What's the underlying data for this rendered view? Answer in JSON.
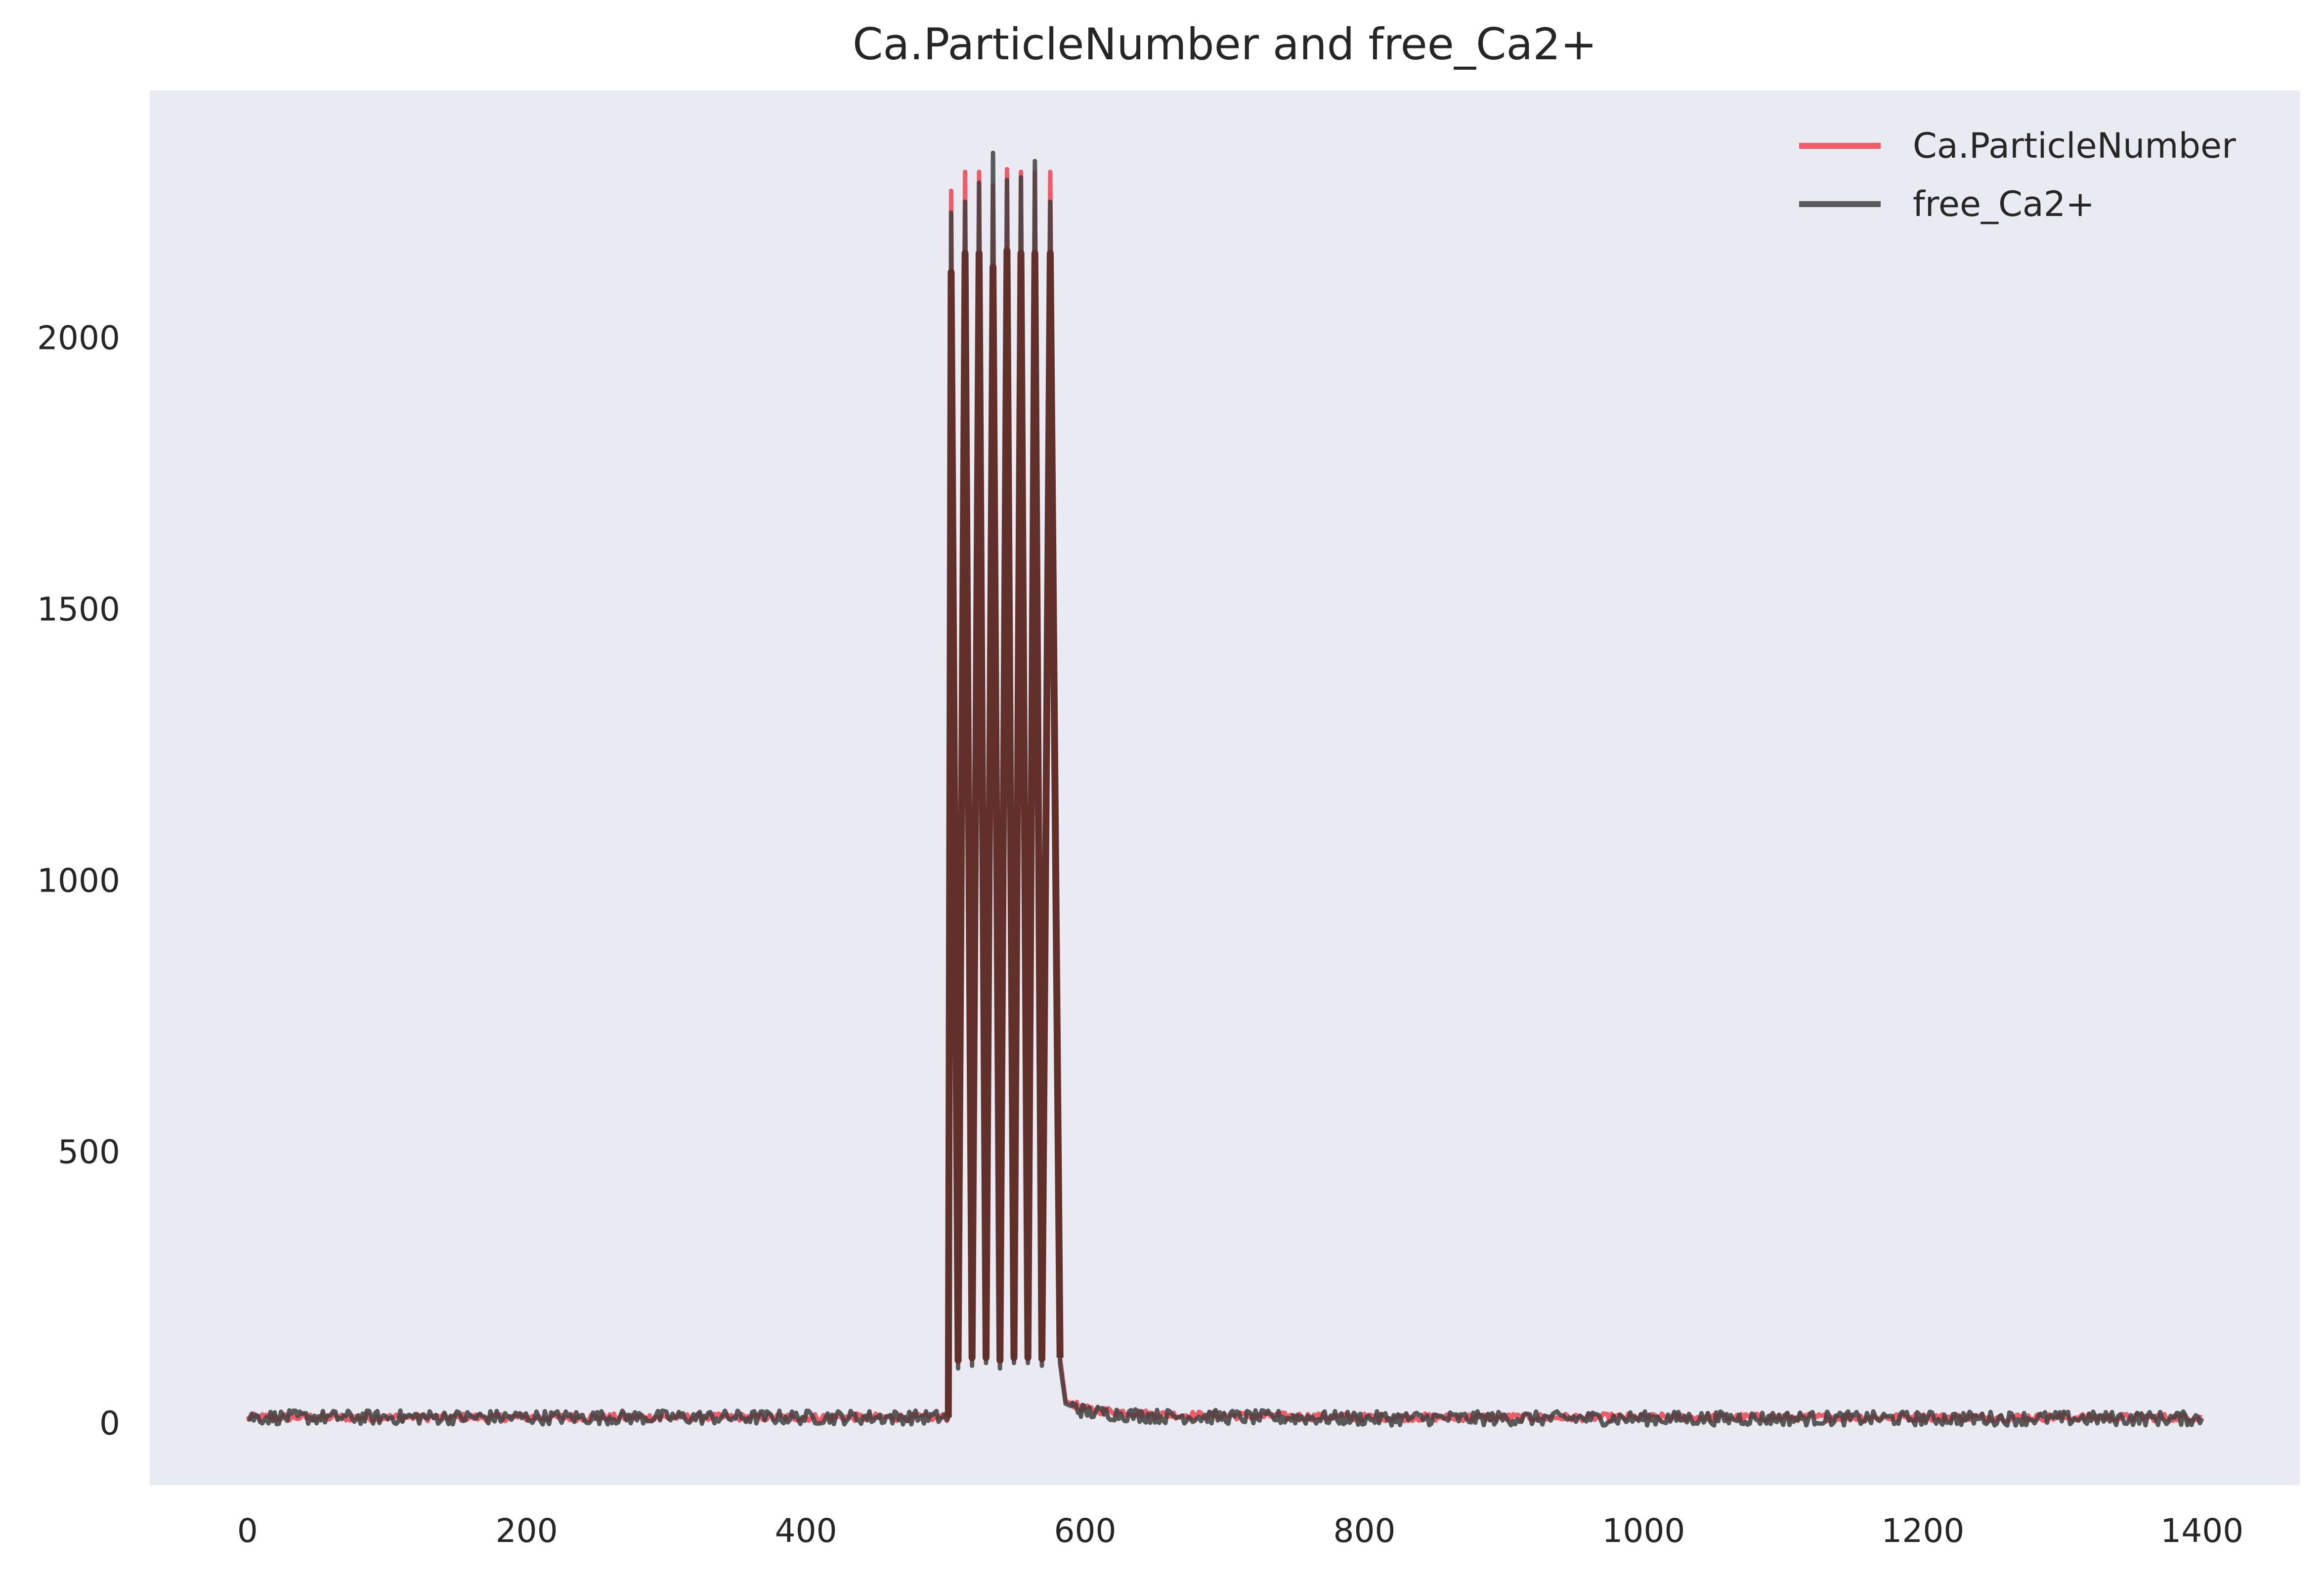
{
  "chart_data": {
    "type": "line",
    "title": "Ca.ParticleNumber and free_Ca2+",
    "xlabel": "",
    "ylabel": "",
    "xlim": [
      -70,
      1470
    ],
    "ylim": [
      -115,
      2455
    ],
    "xticks": [
      0,
      200,
      400,
      600,
      800,
      1000,
      1200,
      1400
    ],
    "yticks": [
      0,
      500,
      1000,
      1500,
      2000
    ],
    "grid": false,
    "legend_position": "top-right",
    "background": "#eaeaf2",
    "series": [
      {
        "name": "Ca.ParticleNumber",
        "color": "#f0434f",
        "baseline_pre": 10,
        "burst_start": 502,
        "burst_end": 582,
        "peaks": [
          {
            "x": 504,
            "y": 2270
          },
          {
            "x": 514,
            "y": 2305
          },
          {
            "x": 524,
            "y": 2305
          },
          {
            "x": 534,
            "y": 2280
          },
          {
            "x": 544,
            "y": 2310
          },
          {
            "x": 554,
            "y": 2305
          },
          {
            "x": 564,
            "y": 2305
          },
          {
            "x": 575,
            "y": 2305
          }
        ],
        "troughs": [
          {
            "x": 509,
            "y": 115
          },
          {
            "x": 519,
            "y": 120
          },
          {
            "x": 529,
            "y": 120
          },
          {
            "x": 539,
            "y": 115
          },
          {
            "x": 549,
            "y": 120
          },
          {
            "x": 559,
            "y": 120
          },
          {
            "x": 569,
            "y": 118
          }
        ],
        "decay": [
          {
            "x": 582,
            "y": 120
          },
          {
            "x": 586,
            "y": 40
          },
          {
            "x": 600,
            "y": 25
          },
          {
            "x": 650,
            "y": 15
          },
          {
            "x": 800,
            "y": 10
          },
          {
            "x": 1400,
            "y": 10
          }
        ]
      },
      {
        "name": "free_Ca2+",
        "color": "#404040",
        "baseline_pre": 10,
        "burst_start": 502,
        "burst_end": 582,
        "peaks": [
          {
            "x": 504,
            "y": 2230
          },
          {
            "x": 514,
            "y": 2250
          },
          {
            "x": 524,
            "y": 2285
          },
          {
            "x": 534,
            "y": 2340
          },
          {
            "x": 544,
            "y": 2290
          },
          {
            "x": 554,
            "y": 2295
          },
          {
            "x": 564,
            "y": 2325
          },
          {
            "x": 575,
            "y": 2250
          }
        ],
        "troughs": [
          {
            "x": 509,
            "y": 100
          },
          {
            "x": 519,
            "y": 105
          },
          {
            "x": 529,
            "y": 110
          },
          {
            "x": 539,
            "y": 100
          },
          {
            "x": 549,
            "y": 110
          },
          {
            "x": 559,
            "y": 110
          },
          {
            "x": 569,
            "y": 105
          }
        ],
        "decay": [
          {
            "x": 582,
            "y": 110
          },
          {
            "x": 586,
            "y": 35
          },
          {
            "x": 600,
            "y": 20
          },
          {
            "x": 650,
            "y": 12
          },
          {
            "x": 800,
            "y": 8
          },
          {
            "x": 1400,
            "y": 8
          }
        ]
      }
    ],
    "overlap_color": "#62302a"
  }
}
